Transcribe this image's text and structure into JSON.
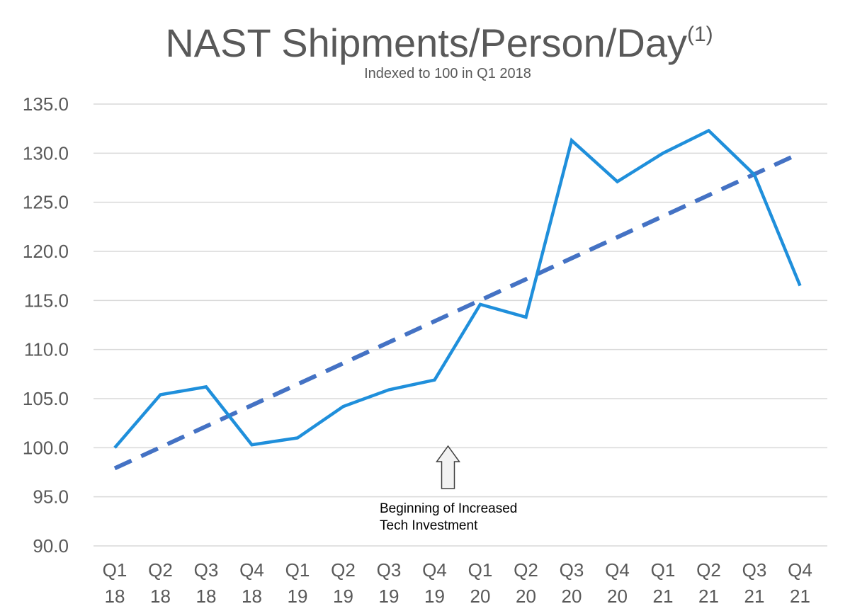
{
  "chart_data": {
    "type": "line",
    "title": "NAST Shipments/Person/Day",
    "title_superscript": "(1)",
    "subtitle": "Indexed to 100 in Q1 2018",
    "xlabel": "",
    "ylabel": "",
    "ylim": [
      90,
      135
    ],
    "yticks": [
      "90.0",
      "95.0",
      "100.0",
      "105.0",
      "110.0",
      "115.0",
      "120.0",
      "125.0",
      "130.0",
      "135.0"
    ],
    "grid": true,
    "categories": [
      [
        "Q1",
        "18"
      ],
      [
        "Q2",
        "18"
      ],
      [
        "Q3",
        "18"
      ],
      [
        "Q4",
        "18"
      ],
      [
        "Q1",
        "19"
      ],
      [
        "Q2",
        "19"
      ],
      [
        "Q3",
        "19"
      ],
      [
        "Q4",
        "19"
      ],
      [
        "Q1",
        "20"
      ],
      [
        "Q2",
        "20"
      ],
      [
        "Q3",
        "20"
      ],
      [
        "Q4",
        "20"
      ],
      [
        "Q1",
        "21"
      ],
      [
        "Q2",
        "21"
      ],
      [
        "Q3",
        "21"
      ],
      [
        "Q4",
        "21"
      ]
    ],
    "series": [
      {
        "style": "solid",
        "color": "#1f8fdb",
        "values": [
          100.0,
          105.4,
          106.2,
          100.3,
          101.0,
          104.2,
          105.9,
          106.9,
          114.6,
          113.3,
          131.3,
          127.1,
          130.0,
          132.3,
          127.8,
          116.5
        ]
      },
      {
        "style": "dashed-trendline",
        "color": "#4472c4",
        "start": 97.9,
        "end": 130.0
      }
    ],
    "annotation": {
      "category_index": 7,
      "lines": [
        "Beginning of Increased",
        "Tech Investment"
      ],
      "arrow": "up-arrow"
    }
  }
}
